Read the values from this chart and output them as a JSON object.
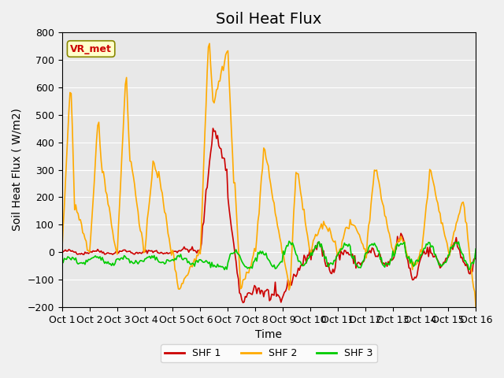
{
  "title": "Soil Heat Flux",
  "ylabel": "Soil Heat Flux ( W/m2)",
  "xlabel": "Time",
  "ylim": [
    -200,
    800
  ],
  "yticks": [
    -200,
    -100,
    0,
    100,
    200,
    300,
    400,
    500,
    600,
    700,
    800
  ],
  "xtick_labels": [
    "Oct 1",
    "Oct 2",
    "Oct 3",
    "Oct 4",
    "Oct 5",
    "Oct 6",
    "Oct 7",
    "Oct 8",
    "Oct 9",
    "Oct 10",
    "Oct 11",
    "Oct 12",
    "Oct 13",
    "Oct 14",
    "Oct 15",
    "Oct 16"
  ],
  "legend_labels": [
    "SHF 1",
    "SHF 2",
    "SHF 3"
  ],
  "colors": [
    "#cc0000",
    "#ffaa00",
    "#00cc00"
  ],
  "annotation_text": "VR_met",
  "annotation_color": "#cc0000",
  "annotation_bg": "#ffffcc",
  "background_color": "#e8e8e8",
  "plot_bg": "#e8e8e8",
  "title_fontsize": 14,
  "axis_label_fontsize": 10,
  "tick_fontsize": 9,
  "n_points": 360,
  "n_days": 15
}
